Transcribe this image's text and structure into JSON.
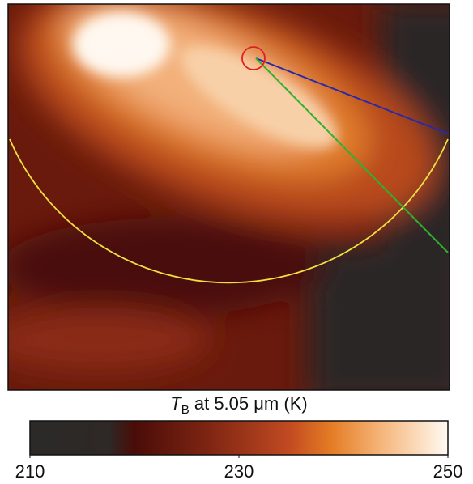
{
  "chart_data": {
    "type": "colorbar",
    "label": {
      "symbol": "T",
      "subscript": "B",
      "text": " at 5.05 μm (K)"
    },
    "xlim": [
      210,
      250
    ],
    "xticks": [
      210,
      230,
      250
    ]
  }
}
